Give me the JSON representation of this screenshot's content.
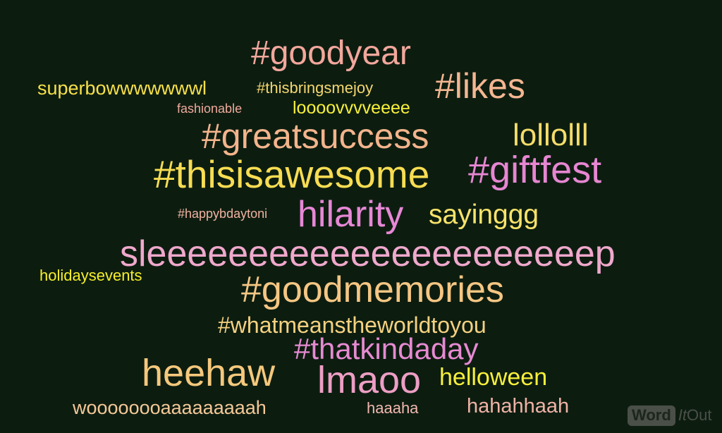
{
  "cloud": {
    "words": [
      {
        "text": "#goodyear",
        "color": "#f3a79c"
      },
      {
        "text": "superbowwwwwwwl",
        "color": "#f8e04a"
      },
      {
        "text": "#thisbringsmejoy",
        "color": "#f5d66e"
      },
      {
        "text": "#likes",
        "color": "#f4b691"
      },
      {
        "text": "fashionable",
        "color": "#f0aa9c"
      },
      {
        "text": "loooovvvveeee",
        "color": "#f8f03a"
      },
      {
        "text": "#greatsuccess",
        "color": "#f3b48c"
      },
      {
        "text": "lollolll",
        "color": "#f5dc6a"
      },
      {
        "text": "#thisisawesome",
        "color": "#f8dd52"
      },
      {
        "text": "#giftfest",
        "color": "#e786d2"
      },
      {
        "text": "#happybdaytoni",
        "color": "#f0b2a0"
      },
      {
        "text": "hilarity",
        "color": "#e788d6"
      },
      {
        "text": "sayinggg",
        "color": "#f8e36a"
      },
      {
        "text": "sleeeeeeeeeeeeeeeeeeeeeep",
        "color": "#f0a8cc"
      },
      {
        "text": "holidaysevents",
        "color": "#f8ee2a"
      },
      {
        "text": "#goodmemories",
        "color": "#f5c683"
      },
      {
        "text": "#whatmeanstheworldtoyou",
        "color": "#f5d180"
      },
      {
        "text": "#thatkindaday",
        "color": "#e78ad2"
      },
      {
        "text": "heehaw",
        "color": "#f5c87c"
      },
      {
        "text": "lmaoo",
        "color": "#ed9ec4"
      },
      {
        "text": "helloween",
        "color": "#f8f03a"
      },
      {
        "text": "woooooooaaaaaaaaah",
        "color": "#f5c898"
      },
      {
        "text": "haaaha",
        "color": "#f3b8b0"
      },
      {
        "text": "hahahhaah",
        "color": "#f0b2a6"
      }
    ]
  },
  "logo": {
    "word": "Word",
    "it": "It",
    "out": "Out"
  }
}
